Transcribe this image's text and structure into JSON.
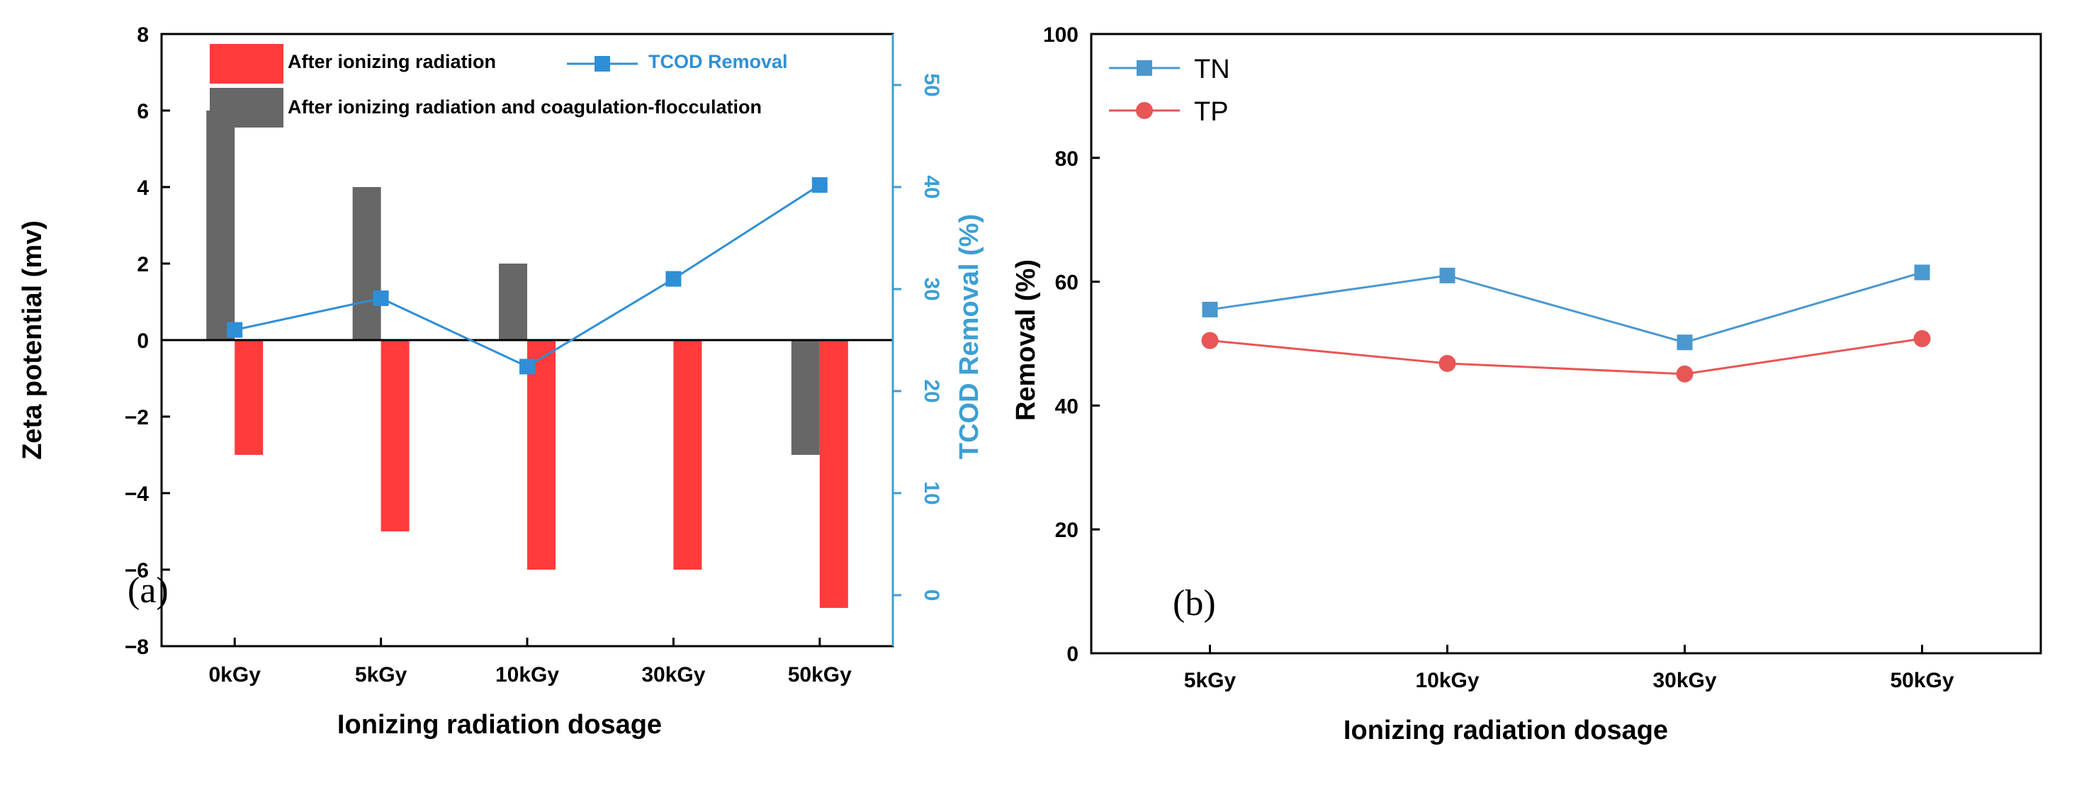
{
  "colors": {
    "red": "#ff3b3b",
    "gray": "#676767",
    "blue": "#2f8fd6",
    "blue_axis": "#3d9fd3",
    "tn": "#4a98cf",
    "tp": "#e85656",
    "axis": "#000000"
  },
  "chart_data": [
    {
      "panel": "(a)",
      "type": "bar",
      "categories": [
        "0kGy",
        "5kGy",
        "10kGy",
        "30kGy",
        "50kGy"
      ],
      "xlabel": "Ionizing radiation dosage",
      "ylabel": "Zeta potential (mv)",
      "ylabel_right": "TCOD Removal (%)",
      "ylim": [
        -8,
        8
      ],
      "yticks": [
        -8,
        -6,
        -4,
        -2,
        0,
        2,
        4,
        6,
        8
      ],
      "ylim_right": [
        -5,
        55
      ],
      "yticks_right": [
        0,
        10,
        20,
        30,
        40,
        50
      ],
      "series": [
        {
          "name": "After ionizing radiation",
          "kind": "bar",
          "values": [
            -3,
            -5,
            -6,
            -6,
            -7
          ]
        },
        {
          "name": "After ionizing radiation and coagulation-flocculation",
          "kind": "bar",
          "values": [
            6,
            4,
            2,
            0,
            -3
          ]
        },
        {
          "name": "TCOD Removal",
          "kind": "line",
          "axis": "right",
          "values": [
            26,
            29.1,
            22.4,
            31.0,
            40.2
          ]
        }
      ],
      "legend": {
        "red": "After ionizing radiation",
        "gray": "After ionizing radiation and coagulation-flocculation",
        "line": "TCOD Removal"
      }
    },
    {
      "panel": "(b)",
      "type": "line",
      "categories": [
        "5kGy",
        "10kGy",
        "30kGy",
        "50kGy"
      ],
      "xlabel": "Ionizing radiation dosage",
      "ylabel": "Removal (%)",
      "ylim": [
        0,
        100
      ],
      "yticks": [
        0,
        20,
        40,
        60,
        80,
        100
      ],
      "series": [
        {
          "name": "TN",
          "values": [
            55.5,
            61.0,
            50.2,
            61.5
          ]
        },
        {
          "name": "TP",
          "values": [
            50.5,
            46.8,
            45.1,
            50.8
          ]
        }
      ]
    }
  ]
}
